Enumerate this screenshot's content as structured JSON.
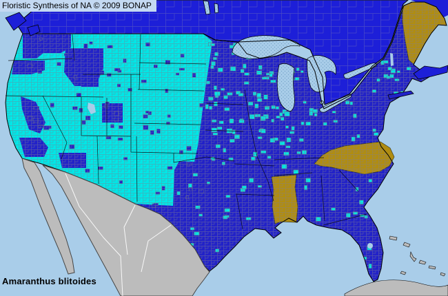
{
  "header": {
    "credit": "Floristic Synthesis of NA © 2009 BONAP"
  },
  "footer": {
    "species": "Amaranthus blitoides"
  },
  "map": {
    "colors": {
      "ocean": "#a9cde9",
      "canada": "#1d1fd8",
      "us_state_present": "#2222c8",
      "county_present": "#00e6e6",
      "state_absent_gold": "#b08d12",
      "outside_area_gray": "#bcbcbc",
      "lake": "#a9cde9",
      "header_bg": "#c4d9f2"
    },
    "gold_states": [
      "Maine",
      "North Carolina",
      "Mississippi"
    ]
  }
}
